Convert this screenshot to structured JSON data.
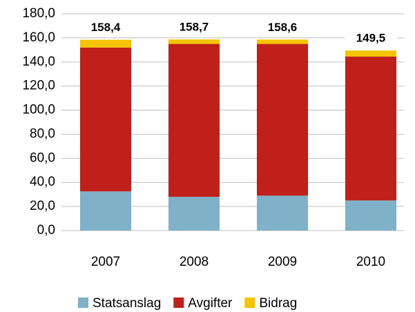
{
  "chart_data": {
    "type": "stacked_bar",
    "categories": [
      "2007",
      "2008",
      "2009",
      "2010"
    ],
    "series": [
      {
        "name": "Statsanslag",
        "color": "#7fb1c9",
        "values": [
          32.5,
          28.0,
          29.0,
          25.0
        ]
      },
      {
        "name": "Avgifter",
        "color": "#c0201a",
        "values": [
          119.5,
          127.0,
          126.0,
          119.5
        ]
      },
      {
        "name": "Bidrag",
        "color": "#f5c400",
        "values": [
          6.4,
          3.7,
          3.6,
          5.0
        ]
      }
    ],
    "totals": [
      158.4,
      158.7,
      158.6,
      149.5
    ],
    "total_labels": [
      "158,4",
      "158,7",
      "158,6",
      "149,5"
    ],
    "ylim": [
      0,
      180
    ],
    "yticks": [
      {
        "value": 0,
        "label": "0,0"
      },
      {
        "value": 20,
        "label": "20,0"
      },
      {
        "value": 40,
        "label": "40,0"
      },
      {
        "value": 60,
        "label": "60,0"
      },
      {
        "value": 80,
        "label": "80,0"
      },
      {
        "value": 100,
        "label": "100,0"
      },
      {
        "value": 120,
        "label": "120,0"
      },
      {
        "value": 140,
        "label": "140,0"
      },
      {
        "value": 160,
        "label": "160,0"
      },
      {
        "value": 180,
        "label": "180,0"
      }
    ],
    "grid": true,
    "legend": "bottom"
  }
}
